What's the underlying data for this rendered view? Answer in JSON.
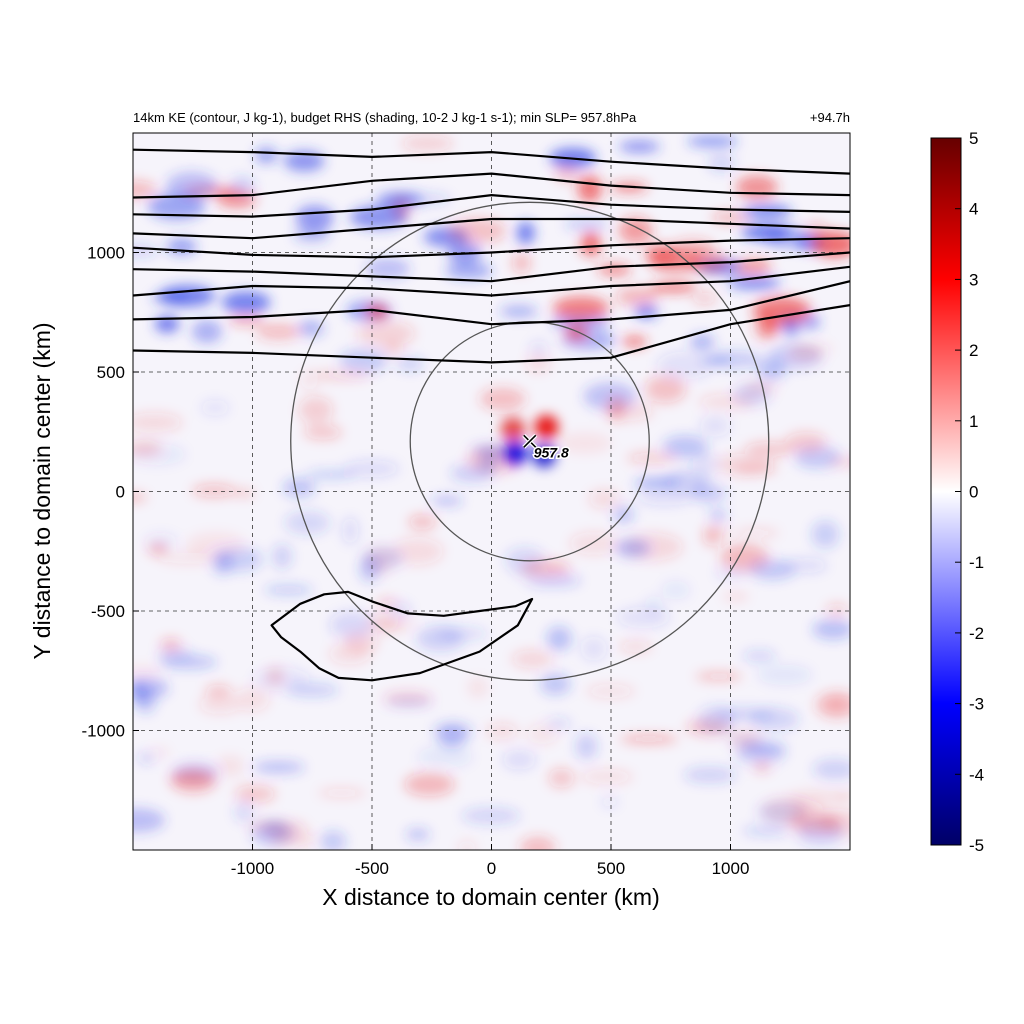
{
  "chart_data": {
    "type": "heatmap",
    "header_left": "14km KE (contour, J kg-1), budget RHS (shading, 10-2 J kg-1 s-1); min SLP= 957.8hPa",
    "header_right": "+94.7h",
    "xlabel": "X distance to domain center (km)",
    "ylabel": "Y distance to domain center (km)",
    "xlim": [
      -1500,
      1500
    ],
    "ylim": [
      -1500,
      1500
    ],
    "x_ticks": [
      -1000,
      -500,
      0,
      500,
      1000
    ],
    "y_ticks": [
      -1000,
      -500,
      0,
      500,
      1000
    ],
    "grid": "dashed",
    "colorbar": {
      "min": -5,
      "max": 5,
      "ticks": [
        -5,
        -4,
        -3,
        -2,
        -1,
        0,
        1,
        2,
        3,
        4,
        5
      ],
      "colors": [
        "#000066",
        "#0000ff",
        "#ffffff",
        "#ff0000",
        "#660000"
      ]
    },
    "min_slp_label": "957.8",
    "storm_center": [
      160,
      210
    ],
    "range_circles_km": [
      500,
      1000
    ],
    "ke_contours": [
      {
        "x": [
          -1500,
          -1000,
          -500,
          0,
          500,
          1000,
          1500
        ],
        "y": [
          590,
          580,
          560,
          540,
          560,
          700,
          780
        ]
      },
      {
        "x": [
          -1500,
          -1000,
          -500,
          0,
          500,
          1000,
          1500
        ],
        "y": [
          720,
          730,
          760,
          700,
          720,
          760,
          880
        ]
      },
      {
        "x": [
          -1500,
          -1000,
          -500,
          0,
          500,
          1000,
          1500
        ],
        "y": [
          820,
          860,
          850,
          820,
          860,
          880,
          940
        ]
      },
      {
        "x": [
          -1500,
          -1000,
          -500,
          0,
          500,
          1000,
          1500
        ],
        "y": [
          930,
          920,
          900,
          880,
          940,
          960,
          1000
        ]
      },
      {
        "x": [
          -1500,
          -1000,
          -500,
          0,
          500,
          1000,
          1500
        ],
        "y": [
          1020,
          990,
          980,
          1000,
          1030,
          1050,
          1060
        ]
      },
      {
        "x": [
          -1500,
          -1000,
          -500,
          0,
          500,
          1000,
          1500
        ],
        "y": [
          1080,
          1060,
          1100,
          1140,
          1140,
          1120,
          1100
        ]
      },
      {
        "x": [
          -1500,
          -1000,
          -500,
          0,
          500,
          1000,
          1500
        ],
        "y": [
          1160,
          1150,
          1180,
          1240,
          1200,
          1180,
          1170
        ]
      },
      {
        "x": [
          -1500,
          -1000,
          -500,
          0,
          500,
          1000,
          1500
        ],
        "y": [
          1230,
          1240,
          1300,
          1330,
          1280,
          1250,
          1240
        ]
      },
      {
        "x": [
          -1500,
          -1000,
          -500,
          0,
          500,
          1000,
          1500
        ],
        "y": [
          1430,
          1420,
          1400,
          1420,
          1380,
          1350,
          1330
        ]
      }
    ],
    "ke_closed_contour": {
      "x": [
        -920,
        -800,
        -700,
        -600,
        -500,
        -350,
        -200,
        -50,
        100,
        170,
        110,
        -50,
        -300,
        -500,
        -640,
        -720,
        -800,
        -880,
        -920
      ],
      "y": [
        -560,
        -470,
        -430,
        -420,
        -460,
        -510,
        -520,
        -500,
        -480,
        -450,
        -560,
        -670,
        -760,
        -790,
        -780,
        -740,
        -670,
        -610,
        -560
      ]
    }
  }
}
